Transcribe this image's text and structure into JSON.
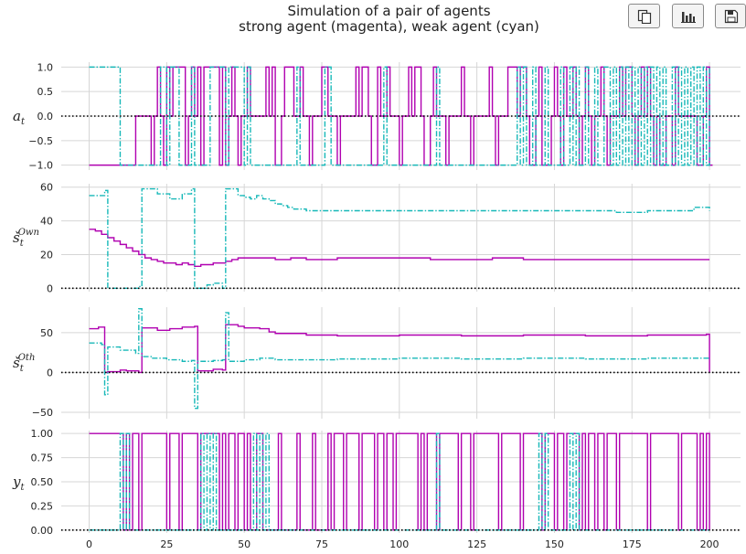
{
  "title_line1": "Simulation of a pair of agents",
  "title_line2": "strong agent (magenta), weak agent (cyan)",
  "toolbar": [
    {
      "name": "copy-button",
      "icon": "copy-icon"
    },
    {
      "name": "chart-button",
      "icon": "bar-chart-icon"
    },
    {
      "name": "save-button",
      "icon": "save-icon"
    }
  ],
  "colors": {
    "strong": "#b000b0",
    "weak": "#17b8b8",
    "grid": "#d6d6d6",
    "zero": "#000000"
  },
  "chart_data": [
    {
      "type": "line",
      "ylabel": "a_t",
      "ylim": [
        -1.1,
        1.1
      ],
      "yticks": [
        1.0,
        0.5,
        0.0,
        -0.5,
        -1.0
      ],
      "ytick_labels": [
        "1.0",
        "0.5",
        "0.0",
        "−0.5",
        "−1.0"
      ],
      "xlim": [
        -9,
        210
      ],
      "grid": true,
      "zero_line": true,
      "series": [
        {
          "color": "strong",
          "style": "solid",
          "step": true,
          "x": [
            0,
            14,
            15,
            20,
            21,
            22,
            23,
            24,
            25,
            26,
            27,
            31,
            32,
            33,
            34,
            35,
            36,
            37,
            38,
            42,
            43,
            44,
            45,
            46,
            47,
            48,
            49,
            51,
            52,
            53,
            57,
            58,
            59,
            60,
            62,
            63,
            66,
            68,
            69,
            71,
            72,
            74,
            75,
            76,
            77,
            80,
            81,
            82,
            86,
            87,
            88,
            90,
            91,
            93,
            94,
            96,
            97,
            100,
            101,
            103,
            104,
            105,
            107,
            108,
            110,
            111,
            112,
            115,
            116,
            117,
            120,
            121,
            123,
            124,
            125,
            129,
            130,
            131,
            132,
            133,
            135,
            138,
            139,
            141,
            142,
            144,
            145,
            146,
            149,
            150,
            151,
            152,
            153,
            154,
            156,
            157,
            158,
            159,
            160,
            161,
            162,
            163,
            165,
            166,
            167,
            168,
            171,
            172,
            173,
            175,
            176,
            177,
            178,
            179,
            180,
            181,
            182,
            183,
            184,
            186,
            188,
            189,
            190,
            196,
            198,
            199,
            200,
            201
          ],
          "y": [
            -1,
            -1,
            0,
            -1,
            0,
            1,
            0,
            -1,
            1,
            0,
            1,
            -1,
            0,
            1,
            0,
            1,
            -1,
            1,
            1,
            -1,
            1,
            -1,
            0,
            1,
            0,
            -1,
            0,
            1,
            0,
            0,
            1,
            0,
            1,
            -1,
            0,
            1,
            0,
            1,
            0,
            -1,
            0,
            0,
            1,
            1,
            0,
            -1,
            0,
            0,
            1,
            0,
            1,
            0,
            -1,
            1,
            0,
            1,
            0,
            -1,
            0,
            1,
            0,
            1,
            0,
            -1,
            0,
            1,
            0,
            -1,
            0,
            0,
            1,
            0,
            -1,
            0,
            0,
            1,
            0,
            -1,
            0,
            0,
            1,
            0,
            1,
            0,
            -1,
            0,
            1,
            -1,
            0,
            1,
            0,
            -1,
            1,
            0,
            1,
            0,
            -1,
            0,
            1,
            0,
            -1,
            0,
            1,
            0,
            -1,
            0,
            1,
            0,
            1,
            0,
            -1,
            0,
            1,
            0,
            1,
            0,
            -1,
            0,
            -1,
            0,
            -1,
            1,
            0,
            -1,
            0,
            1,
            -1,
            -1
          ]
        },
        {
          "color": "weak",
          "style": "dashdot",
          "step": true,
          "x": [
            0,
            10,
            11,
            22,
            23,
            25,
            26,
            28,
            29,
            33,
            34,
            38,
            39,
            44,
            45,
            50,
            51,
            52,
            56,
            67,
            68,
            75,
            76,
            78,
            79,
            95,
            96,
            112,
            113,
            138,
            139,
            140,
            141,
            143,
            144,
            147,
            148,
            152,
            153,
            155,
            156,
            157,
            158,
            160,
            161,
            163,
            164,
            166,
            168,
            169,
            170,
            171,
            172,
            173,
            174,
            175,
            176,
            177,
            178,
            179,
            180,
            181,
            182,
            183,
            184,
            185,
            186,
            188,
            189,
            190,
            191,
            192,
            193,
            194,
            195,
            196,
            197,
            198,
            199,
            200
          ],
          "y": [
            1,
            -1,
            -1,
            -1,
            1,
            -1,
            1,
            1,
            -1,
            1,
            -1,
            -1,
            1,
            -1,
            1,
            -1,
            1,
            -1,
            -1,
            1,
            -1,
            -1,
            1,
            -1,
            -1,
            1,
            -1,
            1,
            -1,
            1,
            -1,
            1,
            -1,
            1,
            -1,
            1,
            -1,
            1,
            -1,
            1,
            -1,
            1,
            -1,
            1,
            -1,
            1,
            -1,
            1,
            -1,
            1,
            -1,
            1,
            -1,
            1,
            -1,
            1,
            -1,
            1,
            -1,
            1,
            -1,
            1,
            -1,
            1,
            -1,
            1,
            -1,
            1,
            -1,
            1,
            -1,
            1,
            -1,
            1,
            -1,
            1,
            -1,
            1,
            -1,
            1
          ]
        }
      ]
    },
    {
      "type": "line",
      "ylabel": "š_t^Own",
      "ylim": [
        -2,
        62
      ],
      "yticks": [
        60,
        40,
        20,
        0
      ],
      "ytick_labels": [
        "60",
        "40",
        "20",
        "0"
      ],
      "xlim": [
        -9,
        210
      ],
      "grid": true,
      "zero_line": true,
      "series": [
        {
          "color": "strong",
          "style": "solid",
          "step": true,
          "x": [
            0,
            2,
            4,
            6,
            8,
            10,
            12,
            14,
            16,
            18,
            20,
            22,
            24,
            26,
            28,
            30,
            32,
            34,
            36,
            38,
            40,
            42,
            44,
            46,
            48,
            50,
            55,
            60,
            65,
            70,
            80,
            90,
            100,
            110,
            120,
            130,
            140,
            150,
            160,
            170,
            180,
            190,
            200
          ],
          "y": [
            35,
            34,
            32,
            30,
            28,
            26,
            24,
            22,
            20,
            18,
            17,
            16,
            15,
            15,
            14,
            15,
            14,
            13,
            14,
            14,
            15,
            15,
            16,
            17,
            18,
            18,
            18,
            17,
            18,
            17,
            18,
            18,
            18,
            17,
            17,
            18,
            17,
            17,
            17,
            17,
            17,
            17,
            17
          ]
        },
        {
          "color": "weak",
          "style": "dashdot",
          "step": true,
          "x": [
            0,
            5,
            6,
            16,
            17,
            22,
            26,
            30,
            33,
            34,
            38,
            40,
            43,
            44,
            48,
            50,
            52,
            54,
            56,
            58,
            60,
            62,
            64,
            66,
            70,
            80,
            100,
            120,
            140,
            160,
            170,
            180,
            190,
            195,
            200
          ],
          "y": [
            55,
            58,
            0,
            1,
            59,
            56,
            53,
            56,
            59,
            0,
            2,
            3,
            0,
            59,
            55,
            54,
            53,
            55,
            53,
            52,
            50,
            49,
            48,
            47,
            46,
            46,
            46,
            46,
            46,
            46,
            45,
            46,
            46,
            48,
            46
          ]
        }
      ]
    },
    {
      "type": "line",
      "ylabel": "š_t^Oth",
      "ylim": [
        -58,
        82
      ],
      "yticks": [
        50,
        0,
        -50
      ],
      "ytick_labels": [
        "50",
        "0",
        "−50"
      ],
      "xlim": [
        -9,
        210
      ],
      "grid": true,
      "zero_line": true,
      "series": [
        {
          "color": "strong",
          "style": "solid",
          "step": true,
          "x": [
            0,
            3,
            5,
            6,
            10,
            12,
            16,
            17,
            22,
            26,
            30,
            34,
            35,
            40,
            43,
            44,
            48,
            50,
            55,
            58,
            60,
            70,
            80,
            100,
            120,
            140,
            160,
            180,
            199,
            200
          ],
          "y": [
            55,
            57,
            0,
            1,
            3,
            2,
            0,
            56,
            53,
            55,
            57,
            58,
            2,
            4,
            3,
            60,
            58,
            56,
            55,
            51,
            49,
            47,
            46,
            47,
            46,
            47,
            46,
            47,
            48,
            0
          ]
        },
        {
          "color": "weak",
          "style": "dashdot",
          "step": true,
          "x": [
            0,
            4,
            5,
            6,
            10,
            15,
            16,
            17,
            20,
            25,
            30,
            33,
            34,
            35,
            40,
            43,
            44,
            45,
            50,
            55,
            60,
            80,
            100,
            120,
            140,
            160,
            180,
            200
          ],
          "y": [
            37,
            35,
            -28,
            32,
            28,
            24,
            80,
            20,
            18,
            16,
            14,
            15,
            -45,
            14,
            15,
            16,
            75,
            14,
            16,
            18,
            16,
            17,
            18,
            17,
            18,
            17,
            18,
            17
          ]
        }
      ]
    },
    {
      "type": "line",
      "ylabel": "y_t",
      "ylim": [
        -0.03,
        1.03
      ],
      "yticks": [
        1.0,
        0.75,
        0.5,
        0.25,
        0.0
      ],
      "ytick_labels": [
        "1.00",
        "0.75",
        "0.50",
        "0.25",
        "0.00"
      ],
      "xlim": [
        -9,
        210
      ],
      "grid": true,
      "zero_line": true,
      "xticks": [
        0,
        25,
        50,
        75,
        100,
        125,
        150,
        175,
        200
      ],
      "xtick_labels": [
        "0",
        "25",
        "50",
        "75",
        "100",
        "125",
        "150",
        "175",
        "200"
      ],
      "series": [
        {
          "color": "strong",
          "style": "solid",
          "step": true,
          "x": [
            0,
            11,
            12,
            13,
            14,
            16,
            17,
            25,
            26,
            29,
            30,
            35,
            36,
            42,
            43,
            44,
            45,
            47,
            48,
            50,
            51,
            52,
            54,
            55,
            56,
            61,
            62,
            67,
            68,
            72,
            73,
            77,
            78,
            79,
            80,
            82,
            83,
            87,
            88,
            92,
            93,
            95,
            96,
            98,
            99,
            106,
            107,
            108,
            109,
            112,
            113,
            119,
            120,
            123,
            124,
            132,
            133,
            139,
            140,
            146,
            147,
            150,
            151,
            153,
            154,
            158,
            159,
            160,
            161,
            163,
            164,
            166,
            167,
            170,
            171,
            180,
            181,
            190,
            191,
            196,
            197,
            198,
            199,
            200
          ],
          "y": [
            1,
            0,
            1,
            0,
            1,
            0,
            1,
            0,
            1,
            0,
            1,
            0,
            1,
            0,
            1,
            0,
            1,
            0,
            1,
            0,
            1,
            0,
            1,
            1,
            0,
            1,
            0,
            1,
            0,
            1,
            0,
            1,
            0,
            1,
            1,
            0,
            1,
            0,
            1,
            0,
            1,
            0,
            1,
            0,
            1,
            0,
            1,
            0,
            1,
            0,
            1,
            0,
            1,
            0,
            1,
            0,
            1,
            0,
            1,
            0,
            1,
            0,
            1,
            0,
            1,
            0,
            1,
            0,
            1,
            0,
            1,
            0,
            1,
            0,
            1,
            0,
            1,
            0,
            1,
            0,
            1,
            0,
            1,
            0
          ]
        },
        {
          "color": "weak",
          "style": "dashdot",
          "step": true,
          "x": [
            0,
            10,
            11,
            12,
            13,
            36,
            37,
            38,
            39,
            40,
            41,
            53,
            54,
            55,
            56,
            57,
            58,
            112,
            113,
            145,
            146,
            147,
            148,
            155,
            156,
            157,
            158,
            200
          ],
          "y": [
            0,
            1,
            0,
            1,
            0,
            1,
            0,
            1,
            0,
            1,
            0,
            1,
            0,
            1,
            0,
            1,
            0,
            1,
            0,
            1,
            0,
            1,
            0,
            1,
            0,
            1,
            0,
            0
          ]
        }
      ]
    }
  ]
}
